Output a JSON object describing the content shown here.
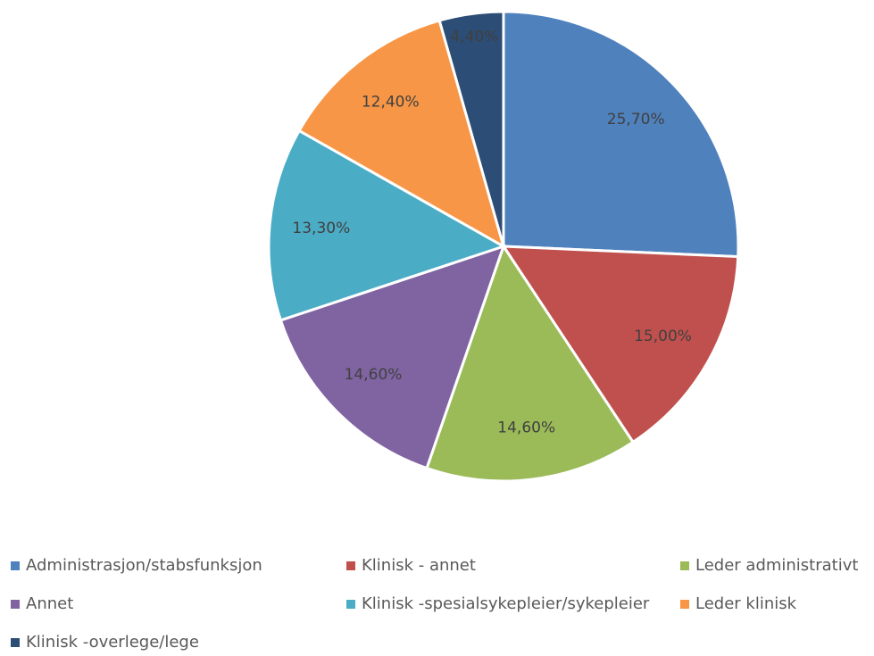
{
  "chart_data": {
    "type": "pie",
    "categories": [
      "Administrasjon/stabsfunksjon",
      "Klinisk - annet",
      "Leder administrativt",
      "Annet",
      "Klinisk -spesialsykepleier/sykepleier",
      "Leder klinisk",
      "Klinisk -overlege/lege"
    ],
    "values": [
      25.7,
      15.0,
      14.6,
      14.6,
      13.3,
      12.4,
      4.4
    ],
    "value_labels": [
      "25,70%",
      "15,00%",
      "14,60%",
      "14,60%",
      "13,30%",
      "12,40%",
      "4,40%"
    ],
    "colors": [
      "#4f81bd",
      "#c0504d",
      "#9bbb59",
      "#8064a2",
      "#4bacc6",
      "#f79646",
      "#2c4d75"
    ],
    "legend": "bottom"
  }
}
